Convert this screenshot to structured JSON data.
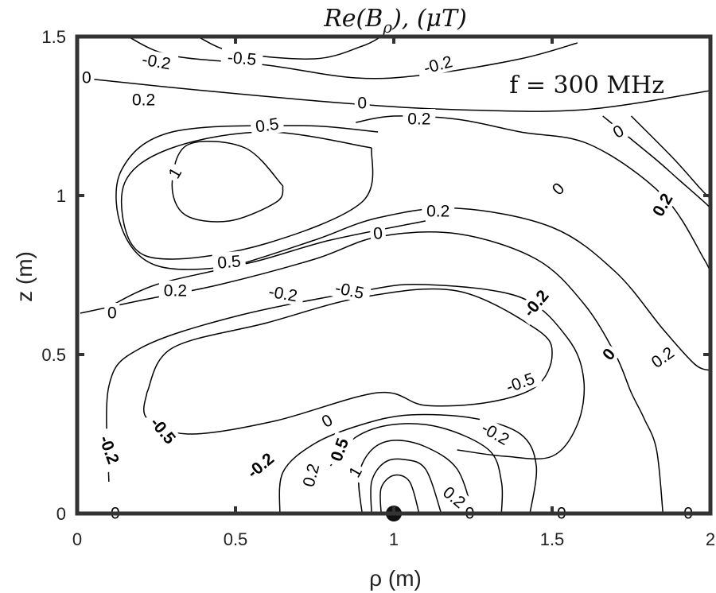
{
  "chart_data": {
    "type": "contour",
    "title": "Re(B_ρ), (μT)",
    "title_parts": {
      "func": "Re(",
      "var": "B",
      "sub": "ρ",
      "mid": "), (",
      "mu": "μ",
      "unit": "T",
      "close": ")"
    },
    "xlabel": "ρ (m)",
    "ylabel": "z (m)",
    "xlim": [
      0,
      2
    ],
    "ylim": [
      0,
      1.5
    ],
    "xticks": [
      0,
      0.5,
      1,
      1.5,
      2
    ],
    "yticks": [
      0,
      0.5,
      1,
      1.5
    ],
    "xtick_labels": [
      "0",
      "0.5",
      "1",
      "1.5",
      "2"
    ],
    "ytick_labels": [
      "0",
      "0.5",
      "1",
      "1.5"
    ],
    "grid": false,
    "annotation": "f = 300 MHz",
    "source_point": {
      "x": 1.0,
      "y": 0.0
    },
    "contour_levels": [
      -0.5,
      -0.2,
      0,
      0.2,
      0.5,
      1
    ],
    "contours": [
      {
        "level": "0",
        "points": [
          [
            0.01,
            1.37
          ],
          [
            0.4,
            1.33
          ],
          [
            0.85,
            1.29
          ],
          [
            1.2,
            1.27
          ],
          [
            1.6,
            1.27
          ],
          [
            2.0,
            1.33
          ]
        ]
      },
      {
        "level": "-0.2",
        "points": [
          [
            0.16,
            1.5
          ],
          [
            0.3,
            1.44
          ],
          [
            0.6,
            1.41
          ],
          [
            0.88,
            1.37
          ],
          [
            1.1,
            1.38
          ],
          [
            1.4,
            1.43
          ],
          [
            1.58,
            1.48
          ]
        ]
      },
      {
        "level": "-0.5",
        "points": [
          [
            0.38,
            1.5
          ],
          [
            0.5,
            1.45
          ],
          [
            0.75,
            1.43
          ],
          [
            0.9,
            1.47
          ],
          [
            0.96,
            1.5
          ]
        ]
      },
      {
        "level": "0.2",
        "points": [
          [
            0.88,
            1.23
          ],
          [
            1.0,
            1.25
          ],
          [
            1.2,
            1.24
          ],
          [
            1.4,
            1.2
          ],
          [
            1.62,
            1.16
          ],
          [
            1.85,
            1.0
          ],
          [
            1.98,
            0.8
          ],
          [
            2.0,
            0.75
          ]
        ]
      },
      {
        "level": "0",
        "points": [
          [
            1.66,
            1.25
          ],
          [
            1.82,
            1.12
          ],
          [
            1.9,
            1.05
          ],
          [
            1.98,
            0.98
          ],
          [
            2.0,
            0.96
          ]
        ]
      },
      {
        "level": "0",
        "points": [
          [
            1.75,
            1.25
          ],
          [
            1.88,
            1.12
          ],
          [
            1.97,
            1.02
          ],
          [
            2.0,
            0.99
          ]
        ]
      },
      {
        "level": "0.2",
        "points": [
          [
            0.1,
            0.65
          ],
          [
            0.25,
            0.72
          ],
          [
            0.5,
            0.78
          ],
          [
            0.75,
            0.86
          ],
          [
            0.95,
            0.93
          ],
          [
            1.2,
            0.96
          ],
          [
            1.5,
            0.9
          ],
          [
            1.7,
            0.76
          ],
          [
            1.85,
            0.58
          ],
          [
            1.95,
            0.47
          ],
          [
            2.0,
            0.45
          ]
        ]
      },
      {
        "level": "0",
        "points": [
          [
            0.01,
            0.63
          ],
          [
            0.2,
            0.67
          ],
          [
            0.45,
            0.72
          ],
          [
            0.75,
            0.8
          ],
          [
            0.95,
            0.87
          ],
          [
            1.2,
            0.88
          ],
          [
            1.45,
            0.8
          ],
          [
            1.6,
            0.66
          ],
          [
            1.7,
            0.5
          ],
          [
            1.75,
            0.38
          ],
          [
            1.79,
            0.3
          ],
          [
            1.83,
            0.2
          ],
          [
            1.85,
            0.0
          ]
        ]
      },
      {
        "level": "0.2",
        "points": [
          [
            0.95,
            1.2
          ],
          [
            0.7,
            1.22
          ],
          [
            0.3,
            1.2
          ],
          [
            0.14,
            1.08
          ],
          [
            0.14,
            0.9
          ],
          [
            0.25,
            0.78
          ],
          [
            0.5,
            0.78
          ],
          [
            0.8,
            0.86
          ],
          [
            1.1,
            0.92
          ]
        ]
      },
      {
        "level": "0.5",
        "points": [
          [
            0.93,
            1.15
          ],
          [
            0.6,
            1.2
          ],
          [
            0.3,
            1.15
          ],
          [
            0.15,
            1.04
          ],
          [
            0.17,
            0.85
          ],
          [
            0.3,
            0.8
          ],
          [
            0.6,
            0.85
          ],
          [
            0.9,
            0.98
          ],
          [
            0.93,
            1.15
          ]
        ]
      },
      {
        "level": "1",
        "points": [
          [
            0.65,
            1.03
          ],
          [
            0.53,
            1.15
          ],
          [
            0.35,
            1.16
          ],
          [
            0.3,
            1.04
          ],
          [
            0.34,
            0.94
          ],
          [
            0.48,
            0.92
          ],
          [
            0.63,
            0.98
          ],
          [
            0.65,
            1.03
          ]
        ]
      },
      {
        "level": "-0.2",
        "points": [
          [
            0.1,
            0.1
          ],
          [
            0.1,
            0.4
          ],
          [
            0.2,
            0.52
          ],
          [
            0.5,
            0.62
          ],
          [
            0.9,
            0.7
          ],
          [
            1.1,
            0.72
          ],
          [
            1.4,
            0.68
          ],
          [
            1.55,
            0.55
          ],
          [
            1.6,
            0.42
          ],
          [
            1.58,
            0.28
          ],
          [
            1.5,
            0.18
          ],
          [
            1.35,
            0.18
          ],
          [
            1.2,
            0.2
          ]
        ]
      },
      {
        "level": "-0.5",
        "points": [
          [
            0.22,
            0.38
          ],
          [
            0.3,
            0.52
          ],
          [
            0.6,
            0.6
          ],
          [
            0.9,
            0.68
          ],
          [
            1.2,
            0.7
          ],
          [
            1.45,
            0.58
          ],
          [
            1.5,
            0.5
          ],
          [
            1.45,
            0.4
          ],
          [
            1.3,
            0.35
          ],
          [
            1.1,
            0.34
          ],
          [
            0.95,
            0.38
          ],
          [
            0.62,
            0.29
          ],
          [
            0.35,
            0.25
          ],
          [
            0.22,
            0.3
          ],
          [
            0.22,
            0.38
          ]
        ]
      },
      {
        "level": "-0.2",
        "points": [
          [
            0.64,
            0.0
          ],
          [
            0.65,
            0.13
          ],
          [
            0.75,
            0.22
          ],
          [
            0.9,
            0.28
          ],
          [
            1.05,
            0.31
          ],
          [
            1.25,
            0.3
          ],
          [
            1.4,
            0.25
          ],
          [
            1.45,
            0.15
          ],
          [
            1.43,
            0.0
          ]
        ]
      },
      {
        "level": "0",
        "points": [
          [
            0.8,
            0.15
          ],
          [
            0.88,
            0.24
          ],
          [
            1.0,
            0.28
          ],
          [
            1.15,
            0.27
          ],
          [
            1.3,
            0.2
          ],
          [
            1.34,
            0.1
          ],
          [
            1.34,
            0.0
          ]
        ]
      },
      {
        "level": "0.2",
        "points": [
          [
            0.9,
            0.0
          ],
          [
            0.89,
            0.12
          ],
          [
            0.93,
            0.2
          ],
          [
            1.0,
            0.23
          ],
          [
            1.1,
            0.21
          ],
          [
            1.2,
            0.14
          ],
          [
            1.25,
            0.0
          ]
        ]
      },
      {
        "level": "0.5",
        "points": [
          [
            0.93,
            0.0
          ],
          [
            0.93,
            0.1
          ],
          [
            0.97,
            0.16
          ],
          [
            1.03,
            0.17
          ],
          [
            1.1,
            0.14
          ],
          [
            1.15,
            0.0
          ]
        ]
      },
      {
        "level": "1",
        "points": [
          [
            0.96,
            0.0
          ],
          [
            0.96,
            0.08
          ],
          [
            1.0,
            0.12
          ],
          [
            1.05,
            0.1
          ],
          [
            1.08,
            0.0
          ]
        ]
      }
    ],
    "contour_labels": [
      {
        "text": "-0.2",
        "x": 0.25,
        "y": 1.42,
        "angle": 10,
        "bold": false
      },
      {
        "text": "-0.5",
        "x": 0.52,
        "y": 1.43,
        "angle": 5,
        "bold": false
      },
      {
        "text": "-0.2",
        "x": 1.14,
        "y": 1.41,
        "angle": -15,
        "bold": false
      },
      {
        "text": "0",
        "x": 0.03,
        "y": 1.37,
        "angle": 0,
        "bold": false
      },
      {
        "text": "0",
        "x": 0.9,
        "y": 1.29,
        "angle": 0,
        "bold": false
      },
      {
        "text": "0.2",
        "x": 1.08,
        "y": 1.24,
        "angle": 0,
        "bold": false
      },
      {
        "text": "0.2",
        "x": 0.21,
        "y": 1.3,
        "angle": 0,
        "bold": false
      },
      {
        "text": "0.5",
        "x": 0.6,
        "y": 1.22,
        "angle": -8,
        "bold": false
      },
      {
        "text": "1",
        "x": 0.31,
        "y": 1.07,
        "angle": -60,
        "bold": false
      },
      {
        "text": "0",
        "x": 1.71,
        "y": 1.2,
        "angle": -30,
        "bold": false
      },
      {
        "text": "0",
        "x": 1.52,
        "y": 1.02,
        "angle": -45,
        "bold": false
      },
      {
        "text": "0.2",
        "x": 1.85,
        "y": 0.97,
        "angle": -60,
        "bold": true
      },
      {
        "text": "0.2",
        "x": 1.14,
        "y": 0.95,
        "angle": 0,
        "bold": false
      },
      {
        "text": "0",
        "x": 0.95,
        "y": 0.88,
        "angle": -5,
        "bold": false
      },
      {
        "text": "0.5",
        "x": 0.48,
        "y": 0.79,
        "angle": -5,
        "bold": false
      },
      {
        "text": "0.2",
        "x": 0.31,
        "y": 0.7,
        "angle": 0,
        "bold": false
      },
      {
        "text": "0",
        "x": 0.11,
        "y": 0.63,
        "angle": 0,
        "bold": false
      },
      {
        "text": "-0.2",
        "x": 0.65,
        "y": 0.69,
        "angle": 10,
        "bold": false
      },
      {
        "text": "-0.5",
        "x": 0.86,
        "y": 0.7,
        "angle": 12,
        "bold": false
      },
      {
        "text": "-0.2",
        "x": 1.45,
        "y": 0.66,
        "angle": -50,
        "bold": true
      },
      {
        "text": "0",
        "x": 1.68,
        "y": 0.5,
        "angle": -50,
        "bold": true
      },
      {
        "text": "0.2",
        "x": 1.85,
        "y": 0.49,
        "angle": -35,
        "bold": false
      },
      {
        "text": "-0.5",
        "x": 1.4,
        "y": 0.41,
        "angle": -20,
        "bold": false
      },
      {
        "text": "-0.5",
        "x": 0.27,
        "y": 0.26,
        "angle": 50,
        "bold": true
      },
      {
        "text": "-0.2",
        "x": 0.1,
        "y": 0.2,
        "angle": 70,
        "bold": true
      },
      {
        "text": "-0.2",
        "x": 0.58,
        "y": 0.15,
        "angle": -40,
        "bold": true
      },
      {
        "text": "0",
        "x": 0.79,
        "y": 0.29,
        "angle": -30,
        "bold": false
      },
      {
        "text": "0.5",
        "x": 0.83,
        "y": 0.2,
        "angle": -70,
        "bold": true
      },
      {
        "text": "1",
        "x": 0.88,
        "y": 0.13,
        "angle": -60,
        "bold": false
      },
      {
        "text": "0.2",
        "x": 0.74,
        "y": 0.12,
        "angle": -75,
        "bold": false
      },
      {
        "text": "-0.2",
        "x": 1.32,
        "y": 0.25,
        "angle": 30,
        "bold": false
      },
      {
        "text": "0.2",
        "x": 1.19,
        "y": 0.05,
        "angle": 40,
        "bold": false
      },
      {
        "text": "0",
        "x": 0.12,
        "y": 0.0,
        "angle": 0,
        "bold": false
      },
      {
        "text": "0",
        "x": 1.24,
        "y": 0.0,
        "angle": 0,
        "bold": false
      },
      {
        "text": "0",
        "x": 1.53,
        "y": 0.0,
        "angle": 0,
        "bold": false
      },
      {
        "text": "0",
        "x": 1.93,
        "y": 0.0,
        "angle": 0,
        "bold": false
      }
    ]
  }
}
